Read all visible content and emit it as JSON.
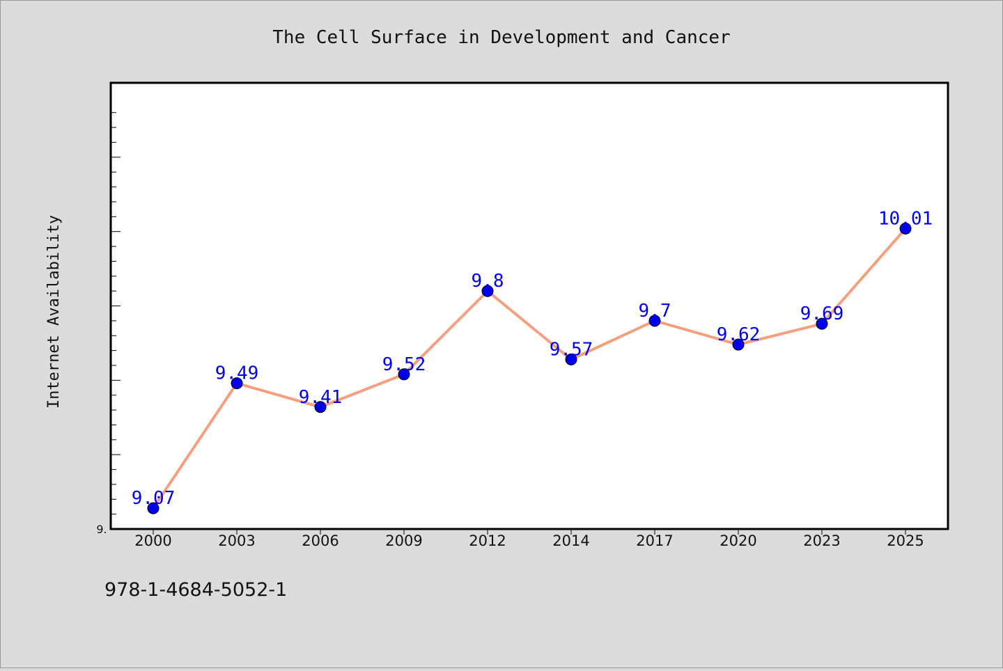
{
  "chart_data": {
    "type": "line",
    "title": "The Cell Surface in Development and Cancer",
    "ylabel": "Internet Availability",
    "xlabel": "",
    "categories": [
      "2000",
      "2003",
      "2006",
      "2009",
      "2012",
      "2014",
      "2017",
      "2020",
      "2023",
      "2025"
    ],
    "values": [
      9.07,
      9.49,
      9.41,
      9.52,
      9.8,
      9.57,
      9.7,
      9.62,
      9.69,
      10.01
    ],
    "data_labels": [
      "9.07",
      "9.49",
      "9.41",
      "9.52",
      "9.8",
      "9.57",
      "9.7",
      "9.62",
      "9.69",
      "10.01"
    ],
    "ylim": [
      9.0,
      10.5
    ],
    "y_tick_label": "9.",
    "grid": false,
    "legend": "none",
    "line_color": "#f4a07e",
    "marker_color": "#0000ee",
    "label_color": "#0000ee"
  },
  "footer": {
    "code": "978-1-4684-5052-1"
  }
}
